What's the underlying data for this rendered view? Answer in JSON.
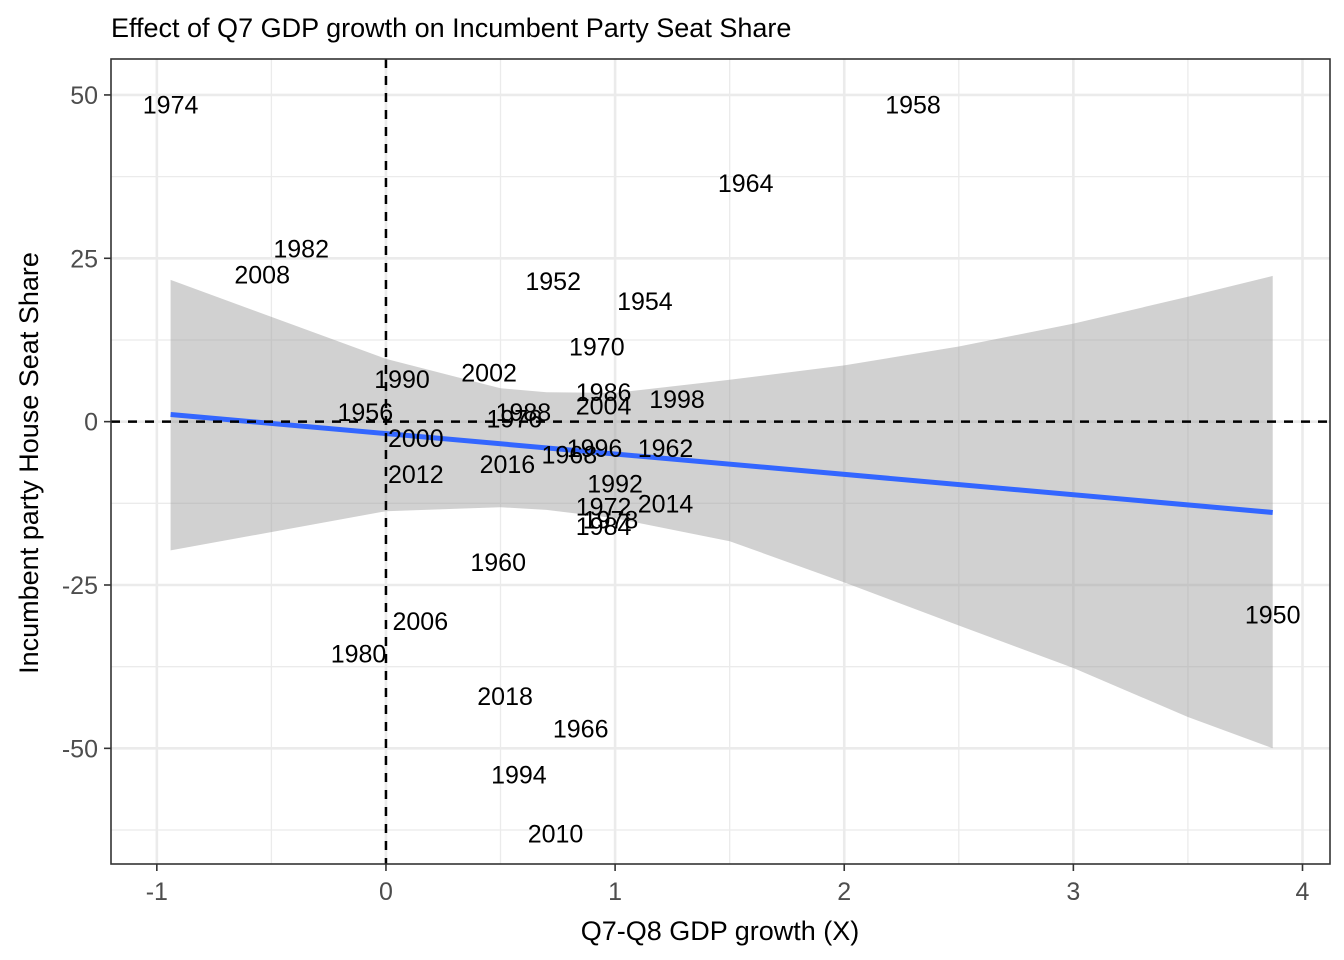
{
  "chart_data": {
    "type": "scatter",
    "title": "Effect of Q7 GDP growth on Incumbent Party Seat Share",
    "xlabel": "Q7-Q8 GDP growth (X)",
    "ylabel": "Incumbent party House Seat Share",
    "xlim": [
      -1.2,
      4.12
    ],
    "ylim": [
      -67.7,
      55.5
    ],
    "x_ticks": [
      -1,
      0,
      1,
      2,
      3,
      4
    ],
    "x_tick_labels": [
      "-1",
      "0",
      "1",
      "2",
      "3",
      "4"
    ],
    "y_ticks": [
      -50,
      -25,
      0,
      25,
      50
    ],
    "y_tick_labels": [
      "-50",
      "-25",
      "0",
      "25",
      "50"
    ],
    "grid": true,
    "reference_lines": {
      "x": 0,
      "y": 0
    },
    "fit": {
      "method": "lm",
      "color": "#3366ff",
      "x_range": [
        -0.94,
        3.87
      ],
      "ci_band": [
        {
          "x": -0.94,
          "lo": -19.7,
          "hi": 21.7
        },
        {
          "x": 0.0,
          "lo": -13.7,
          "hi": 9.6
        },
        {
          "x": 0.5,
          "lo": -13.1,
          "hi": 5.1
        },
        {
          "x": 0.7,
          "lo": -13.5,
          "hi": 4.5
        },
        {
          "x": 1.0,
          "lo": -14.8,
          "hi": 4.4
        },
        {
          "x": 1.5,
          "lo": -18.3,
          "hi": 6.4
        },
        {
          "x": 2.0,
          "lo": -24.6,
          "hi": 8.6
        },
        {
          "x": 2.5,
          "lo": -31.2,
          "hi": 11.5
        },
        {
          "x": 3.0,
          "lo": -37.7,
          "hi": 15.0
        },
        {
          "x": 3.5,
          "lo": -45.2,
          "hi": 19.1
        },
        {
          "x": 3.87,
          "lo": -50.0,
          "hi": 22.3
        }
      ],
      "line": {
        "x": [
          -0.94,
          3.87
        ],
        "y": [
          1.1,
          -13.9
        ]
      }
    },
    "points": [
      {
        "label": "1974",
        "x": -0.94,
        "y": 48.5
      },
      {
        "label": "1958",
        "x": 2.3,
        "y": 48.5
      },
      {
        "label": "1964",
        "x": 1.57,
        "y": 36.5
      },
      {
        "label": "1982",
        "x": -0.37,
        "y": 26.5
      },
      {
        "label": "2008",
        "x": -0.54,
        "y": 22.5
      },
      {
        "label": "1952",
        "x": 0.73,
        "y": 21.5
      },
      {
        "label": "1954",
        "x": 1.13,
        "y": 18.5
      },
      {
        "label": "1970",
        "x": 0.92,
        "y": 11.5
      },
      {
        "label": "1990",
        "x": 0.07,
        "y": 6.5
      },
      {
        "label": "2002",
        "x": 0.45,
        "y": 7.5
      },
      {
        "label": "1986",
        "x": 0.95,
        "y": 4.5
      },
      {
        "label": "2004",
        "x": 0.95,
        "y": 2.5
      },
      {
        "label": "1998",
        "x": 1.27,
        "y": 3.5
      },
      {
        "label": "1956",
        "x": -0.09,
        "y": 1.5
      },
      {
        "label": "1988",
        "x": 0.6,
        "y": 1.5
      },
      {
        "label": "1976",
        "x": 0.56,
        "y": 0.5
      },
      {
        "label": "2000",
        "x": 0.13,
        "y": -2.5
      },
      {
        "label": "1968",
        "x": 0.8,
        "y": -5.0
      },
      {
        "label": "1996",
        "x": 0.91,
        "y": -4.0
      },
      {
        "label": "1962",
        "x": 1.22,
        "y": -4.0
      },
      {
        "label": "2016",
        "x": 0.53,
        "y": -6.5
      },
      {
        "label": "2012",
        "x": 0.13,
        "y": -8.0
      },
      {
        "label": "1992",
        "x": 1.0,
        "y": -9.5
      },
      {
        "label": "2014",
        "x": 1.22,
        "y": -12.5
      },
      {
        "label": "1972",
        "x": 0.95,
        "y": -13.0
      },
      {
        "label": "1978",
        "x": 0.98,
        "y": -15.0
      },
      {
        "label": "1984",
        "x": 0.95,
        "y": -16.0
      },
      {
        "label": "1960",
        "x": 0.49,
        "y": -21.5
      },
      {
        "label": "1950",
        "x": 3.87,
        "y": -29.5
      },
      {
        "label": "2006",
        "x": 0.15,
        "y": -30.5
      },
      {
        "label": "1980",
        "x": -0.12,
        "y": -35.5
      },
      {
        "label": "2018",
        "x": 0.52,
        "y": -42.0
      },
      {
        "label": "1966",
        "x": 0.85,
        "y": -47.0
      },
      {
        "label": "1994",
        "x": 0.58,
        "y": -54.0
      },
      {
        "label": "2010",
        "x": 0.74,
        "y": -63.0
      }
    ]
  }
}
